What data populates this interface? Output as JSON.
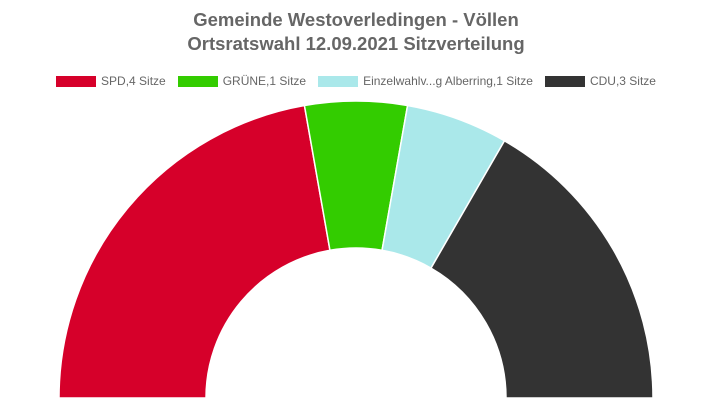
{
  "title_line1": "Gemeinde Westoverledingen - Völlen",
  "title_line2": "Ortsratswahl 12.09.2021 Sitzverteilung",
  "chart_data": {
    "type": "pie",
    "variant": "half-doughnut",
    "title": "Gemeinde Westoverledingen - Völlen Ortsratswahl 12.09.2021 Sitzverteilung",
    "legend_position": "top",
    "categories": [
      "SPD",
      "GRÜNE",
      "Einzelwahlv...g Alberring",
      "CDU"
    ],
    "values": [
      4,
      1,
      1,
      3
    ],
    "unit": "Sitze",
    "colors": [
      "#d6002a",
      "#33cc00",
      "#aae8ea",
      "#333333"
    ],
    "legend_labels": [
      "SPD,4 Sitze",
      "GRÜNE,1 Sitze",
      "Einzelwahlv...g Alberring,1 Sitze",
      "CDU,3 Sitze"
    ]
  }
}
